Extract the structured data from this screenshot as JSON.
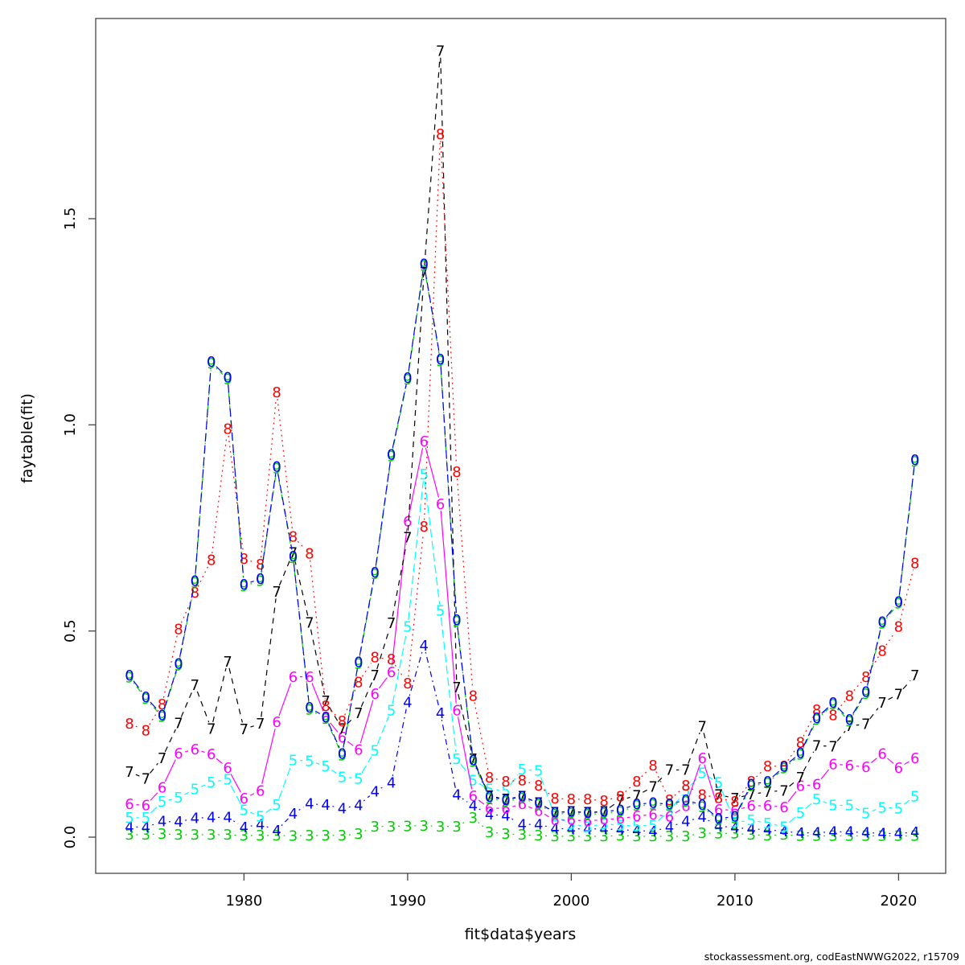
{
  "window": {
    "background": "#ffffff"
  },
  "footer": {
    "credit": "stockassessment.org, codEastNWWG2022, r15709"
  },
  "chart_data": {
    "type": "line",
    "title": "",
    "xlabel": "fit$data$years",
    "ylabel": "faytable(fit)",
    "x_ticks": [
      "1980",
      "1990",
      "2000",
      "2010",
      "2020"
    ],
    "y_ticks": [
      "0.0",
      "0.5",
      "1.0",
      "1.5"
    ],
    "xlim": [
      1971,
      2023
    ],
    "ylim": [
      -0.08,
      1.99
    ],
    "grid": "off",
    "legend": "none",
    "axis_color": "#444444",
    "x": [
      1973,
      1974,
      1975,
      1976,
      1977,
      1978,
      1979,
      1980,
      1981,
      1982,
      1983,
      1984,
      1985,
      1986,
      1987,
      1988,
      1989,
      1990,
      1991,
      1992,
      1993,
      1994,
      1995,
      1996,
      1997,
      1998,
      1999,
      2000,
      2001,
      2002,
      2003,
      2004,
      2005,
      2006,
      2007,
      2008,
      2009,
      2010,
      2011,
      2012,
      2013,
      2014,
      2015,
      2016,
      2017,
      2018,
      2019,
      2020,
      2021
    ],
    "series": [
      {
        "name": "age3",
        "pch": "3",
        "color": "#00CD00",
        "linetype": "dotted",
        "values": [
          0.006,
          0.006,
          0.008,
          0.006,
          0.006,
          0.006,
          0.006,
          0.004,
          0.004,
          0.004,
          0.003,
          0.004,
          0.004,
          0.004,
          0.008,
          0.026,
          0.026,
          0.027,
          0.028,
          0.026,
          0.026,
          0.047,
          0.012,
          0.008,
          0.006,
          0.004,
          0.002,
          0.002,
          0.002,
          0.002,
          0.004,
          0.002,
          0.002,
          0.002,
          0.002,
          0.01,
          0.009,
          0.009,
          0.006,
          0.004,
          0.006,
          0.003,
          0.003,
          0.003,
          0.003,
          0.003,
          0.003,
          0.003,
          0.003
        ]
      },
      {
        "name": "age4",
        "pch": "4",
        "color": "#0000FF",
        "linetype": "dotdash",
        "values": [
          0.025,
          0.024,
          0.038,
          0.037,
          0.046,
          0.048,
          0.048,
          0.024,
          0.031,
          0.016,
          0.057,
          0.081,
          0.078,
          0.07,
          0.077,
          0.111,
          0.132,
          0.327,
          0.465,
          0.301,
          0.103,
          0.076,
          0.055,
          0.052,
          0.031,
          0.031,
          0.021,
          0.02,
          0.02,
          0.02,
          0.018,
          0.016,
          0.014,
          0.025,
          0.038,
          0.049,
          0.027,
          0.023,
          0.02,
          0.018,
          0.014,
          0.01,
          0.011,
          0.013,
          0.013,
          0.011,
          0.009,
          0.009,
          0.012
        ]
      },
      {
        "name": "age5",
        "pch": "5",
        "color": "#00FFFF",
        "linetype": "longdash",
        "values": [
          0.047,
          0.047,
          0.086,
          0.096,
          0.116,
          0.133,
          0.14,
          0.066,
          0.05,
          0.078,
          0.187,
          0.185,
          0.172,
          0.146,
          0.142,
          0.21,
          0.308,
          0.51,
          0.88,
          0.549,
          0.19,
          0.138,
          0.116,
          0.113,
          0.164,
          0.161,
          0.05,
          0.032,
          0.025,
          0.032,
          0.029,
          0.027,
          0.029,
          0.064,
          0.113,
          0.155,
          0.132,
          0.036,
          0.041,
          0.034,
          0.025,
          0.059,
          0.092,
          0.077,
          0.077,
          0.058,
          0.072,
          0.07,
          0.099
        ]
      },
      {
        "name": "age6",
        "pch": "6",
        "color": "#FF00FF",
        "linetype": "solid",
        "values": [
          0.08,
          0.077,
          0.12,
          0.203,
          0.213,
          0.201,
          0.168,
          0.094,
          0.113,
          0.279,
          0.389,
          0.389,
          0.29,
          0.242,
          0.212,
          0.348,
          0.4,
          0.766,
          0.96,
          0.808,
          0.308,
          0.1,
          0.07,
          0.07,
          0.08,
          0.064,
          0.041,
          0.042,
          0.039,
          0.043,
          0.045,
          0.051,
          0.055,
          0.05,
          0.075,
          0.192,
          0.067,
          0.065,
          0.076,
          0.076,
          0.073,
          0.124,
          0.128,
          0.177,
          0.174,
          0.17,
          0.202,
          0.168,
          0.192
        ]
      },
      {
        "name": "age7",
        "pch": "7",
        "color": "#000000",
        "linetype": "dashed",
        "values": [
          0.158,
          0.142,
          0.192,
          0.276,
          0.369,
          0.263,
          0.426,
          0.262,
          0.275,
          0.595,
          0.69,
          0.52,
          0.33,
          0.263,
          0.301,
          0.392,
          0.519,
          0.727,
          1.37,
          1.907,
          0.363,
          0.19,
          0.1,
          0.092,
          0.099,
          0.083,
          0.06,
          0.062,
          0.06,
          0.062,
          0.09,
          0.101,
          0.122,
          0.163,
          0.163,
          0.269,
          0.103,
          0.094,
          0.104,
          0.11,
          0.113,
          0.145,
          0.222,
          0.22,
          0.27,
          0.274,
          0.326,
          0.347,
          0.392
        ]
      },
      {
        "name": "age8",
        "pch": "8",
        "color": "#FF0000",
        "linetype": "dotted",
        "values": [
          0.275,
          0.259,
          0.322,
          0.505,
          0.593,
          0.672,
          0.99,
          0.675,
          0.662,
          1.079,
          0.729,
          0.688,
          0.318,
          0.281,
          0.376,
          0.436,
          0.431,
          0.373,
          0.753,
          1.705,
          0.886,
          0.343,
          0.145,
          0.135,
          0.138,
          0.125,
          0.094,
          0.092,
          0.092,
          0.088,
          0.099,
          0.135,
          0.174,
          0.09,
          0.125,
          0.103,
          0.095,
          0.086,
          0.135,
          0.172,
          0.172,
          0.23,
          0.309,
          0.296,
          0.343,
          0.389,
          0.452,
          0.51,
          0.665
        ]
      },
      {
        "name": "age9",
        "pch": "9",
        "color": "#00CD00",
        "linetype": "dotdash",
        "values": [
          0.388,
          0.336,
          0.292,
          0.417,
          0.618,
          1.149,
          1.111,
          0.609,
          0.622,
          0.895,
          0.677,
          0.31,
          0.287,
          0.198,
          0.421,
          0.638,
          0.924,
          1.11,
          1.386,
          1.155,
          0.523,
          0.183,
          0.094,
          0.086,
          0.095,
          0.079,
          0.056,
          0.058,
          0.055,
          0.058,
          0.062,
          0.076,
          0.079,
          0.076,
          0.086,
          0.074,
          0.041,
          0.046,
          0.124,
          0.131,
          0.167,
          0.2,
          0.285,
          0.322,
          0.281,
          0.348,
          0.518,
          0.567,
          0.911
        ]
      },
      {
        "name": "age10",
        "pch": "0",
        "color": "#0000FF",
        "linetype": "longdash",
        "values": [
          0.392,
          0.34,
          0.296,
          0.421,
          0.622,
          1.153,
          1.115,
          0.613,
          0.626,
          0.899,
          0.681,
          0.314,
          0.291,
          0.202,
          0.425,
          0.642,
          0.928,
          1.114,
          1.39,
          1.159,
          0.527,
          0.187,
          0.098,
          0.09,
          0.099,
          0.083,
          0.06,
          0.062,
          0.059,
          0.062,
          0.066,
          0.08,
          0.083,
          0.08,
          0.09,
          0.078,
          0.045,
          0.05,
          0.128,
          0.135,
          0.171,
          0.204,
          0.289,
          0.326,
          0.285,
          0.352,
          0.522,
          0.571,
          0.915
        ]
      }
    ]
  }
}
